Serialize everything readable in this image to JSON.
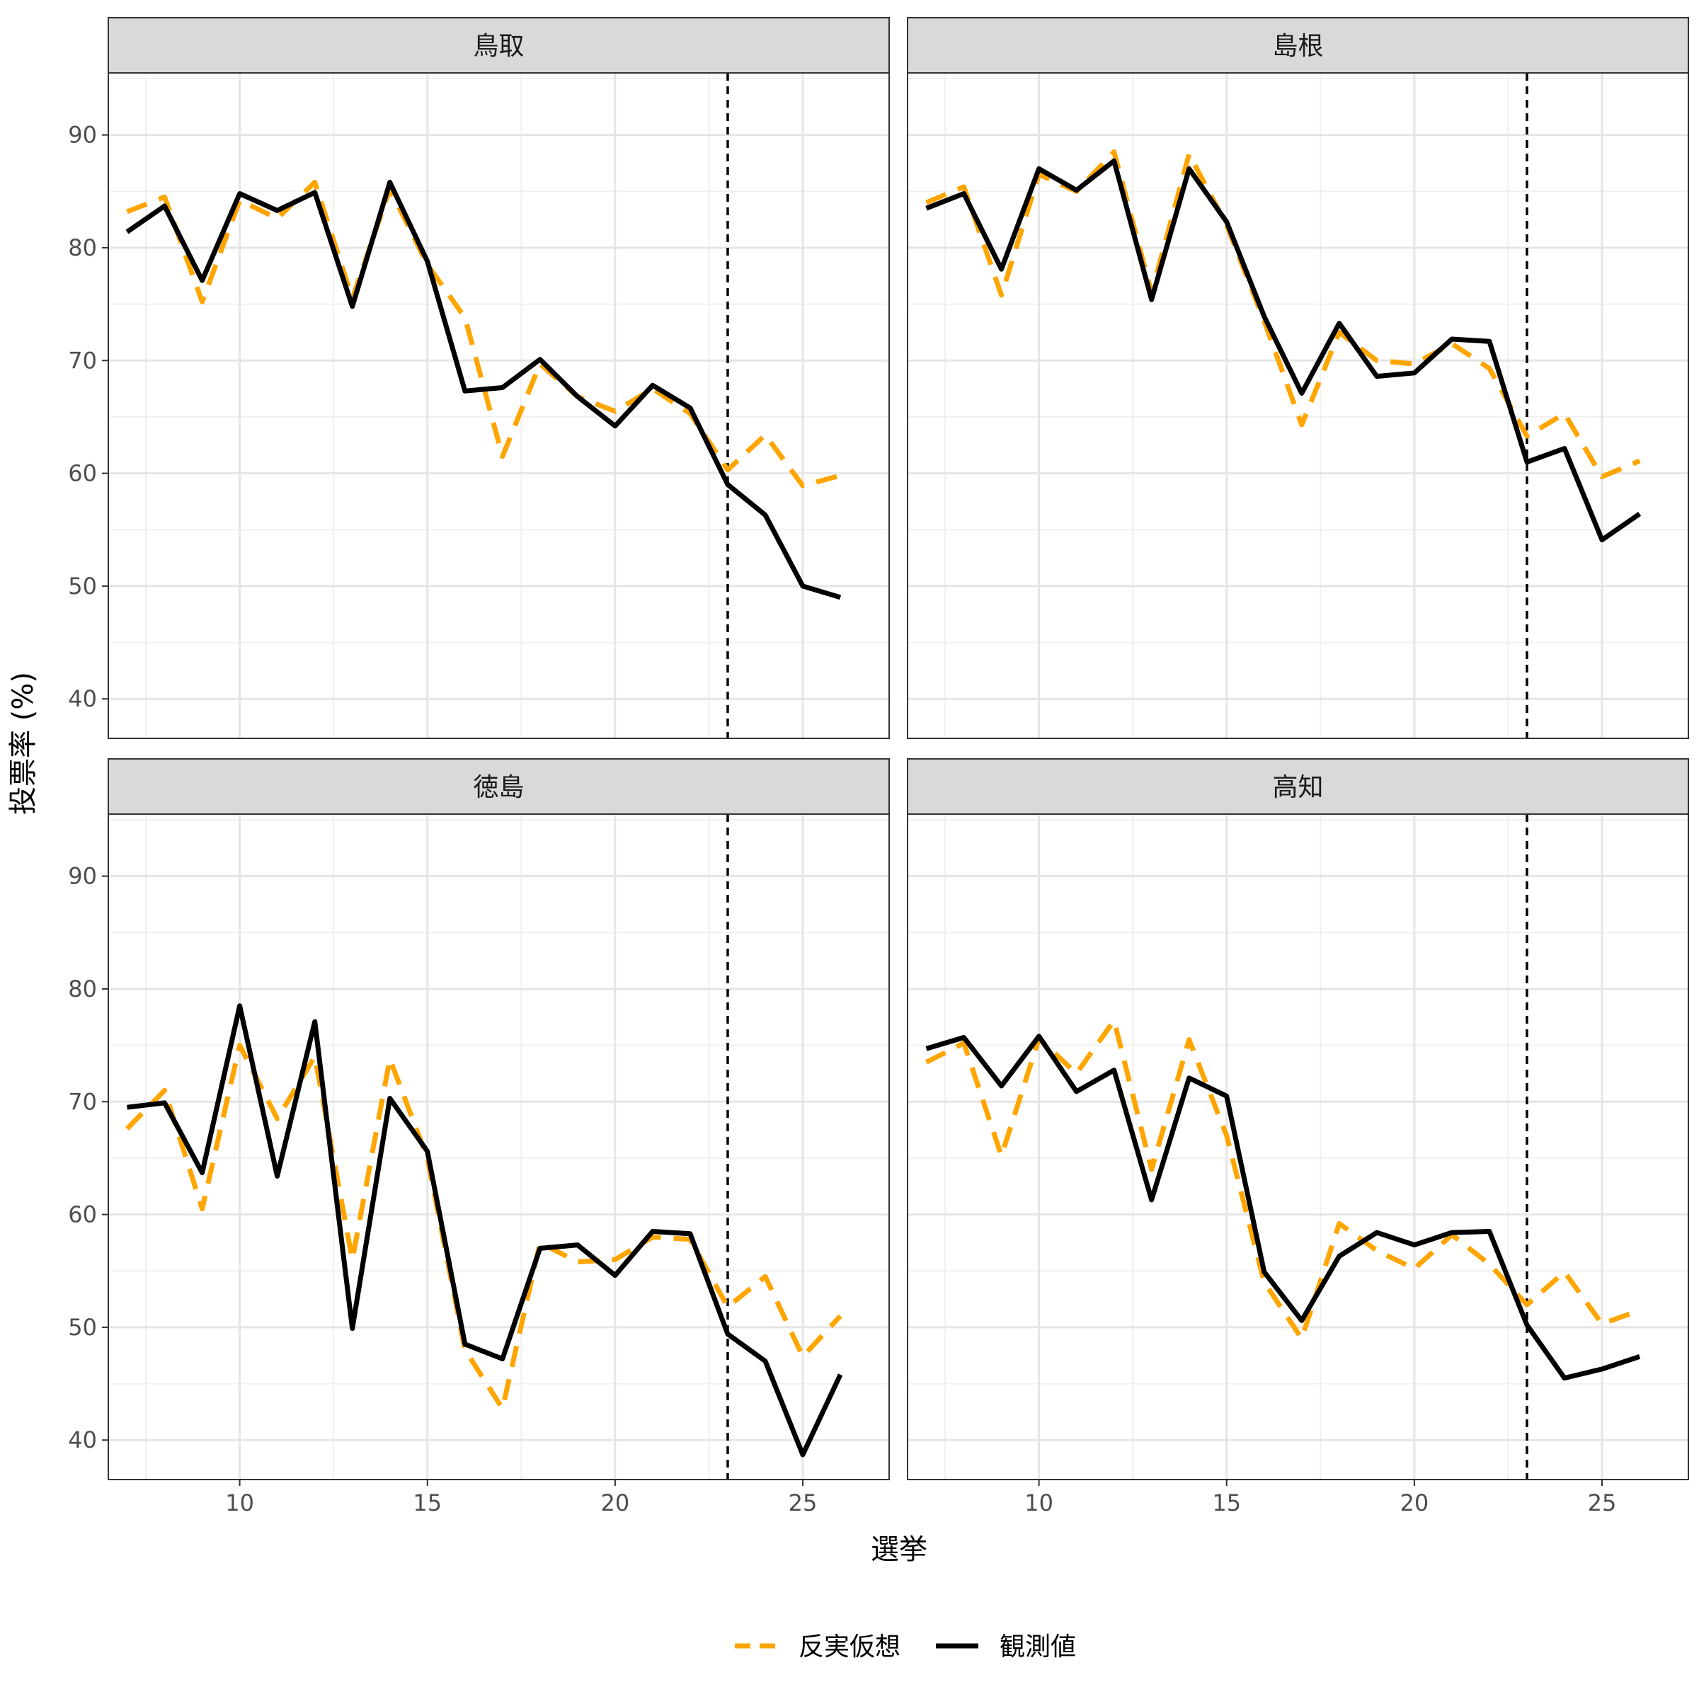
{
  "chart_data": {
    "type": "line",
    "facet_layout": "2x2",
    "xlabel": "選挙",
    "ylabel": "投票率 (%)",
    "xlim": [
      6.5,
      27.3
    ],
    "ylim": [
      36.5,
      95.5
    ],
    "x_ticks": [
      10,
      15,
      20,
      25
    ],
    "y_ticks": [
      40,
      50,
      60,
      70,
      80,
      90
    ],
    "grid": true,
    "vline_x": 23,
    "legend_position": "bottom",
    "legend": [
      {
        "key": "counterfactual",
        "label": "反実仮想",
        "color": "#FFA500",
        "dash": true
      },
      {
        "key": "observed",
        "label": "観測値",
        "color": "#000000",
        "dash": false
      }
    ],
    "x": [
      7,
      8,
      9,
      10,
      11,
      12,
      13,
      14,
      15,
      16,
      17,
      18,
      19,
      20,
      21,
      22,
      23,
      24,
      25,
      26
    ],
    "panels": [
      {
        "title": "鳥取",
        "series": [
          {
            "key": "counterfactual",
            "values": [
              83.2,
              84.5,
              75.2,
              84.2,
              82.6,
              85.8,
              75.5,
              85.2,
              78.5,
              73.8,
              61.5,
              69.7,
              66.8,
              65.5,
              67.5,
              65.3,
              60.3,
              63.4,
              58.9,
              59.8
            ]
          },
          {
            "key": "observed",
            "values": [
              81.4,
              83.7,
              77.1,
              84.8,
              83.3,
              84.9,
              74.8,
              85.8,
              78.8,
              67.3,
              67.6,
              70.1,
              66.8,
              64.2,
              67.8,
              65.8,
              59.0,
              56.3,
              50.0,
              49.0
            ]
          }
        ]
      },
      {
        "title": "島根",
        "series": [
          {
            "key": "counterfactual",
            "values": [
              84.0,
              85.4,
              75.8,
              86.5,
              85.0,
              88.5,
              76.0,
              88.3,
              82.0,
              73.5,
              64.3,
              72.5,
              70.0,
              69.7,
              71.5,
              69.3,
              63.3,
              65.3,
              59.7,
              61.1
            ]
          },
          {
            "key": "observed",
            "values": [
              83.5,
              84.8,
              78.1,
              87.0,
              85.1,
              87.7,
              75.4,
              87.0,
              82.3,
              73.9,
              67.1,
              73.3,
              68.6,
              68.9,
              71.9,
              71.7,
              61.0,
              62.2,
              54.1,
              56.4
            ]
          }
        ]
      },
      {
        "title": "徳島",
        "series": [
          {
            "key": "counterfactual",
            "values": [
              67.6,
              71.0,
              60.5,
              75.0,
              68.5,
              74.0,
              56.0,
              73.8,
              65.0,
              48.0,
              42.8,
              57.5,
              55.8,
              56.0,
              58.0,
              57.8,
              51.8,
              54.5,
              47.4,
              51.0
            ]
          },
          {
            "key": "observed",
            "values": [
              69.5,
              69.9,
              63.7,
              78.5,
              63.4,
              77.1,
              49.9,
              70.3,
              65.6,
              48.5,
              47.2,
              57.0,
              57.3,
              54.6,
              58.5,
              58.3,
              49.4,
              47.0,
              38.7,
              45.8
            ]
          }
        ]
      },
      {
        "title": "高知",
        "series": [
          {
            "key": "counterfactual",
            "values": [
              73.5,
              75.2,
              65.2,
              75.6,
              72.5,
              77.2,
              64.0,
              75.5,
              67.0,
              54.0,
              49.0,
              59.2,
              56.8,
              55.2,
              58.2,
              55.6,
              52.0,
              54.9,
              50.3,
              51.5
            ]
          },
          {
            "key": "observed",
            "values": [
              74.7,
              75.7,
              71.4,
              75.8,
              70.9,
              72.8,
              61.3,
              72.1,
              70.5,
              54.9,
              50.6,
              56.3,
              58.4,
              57.3,
              58.4,
              58.5,
              50.2,
              45.5,
              46.3,
              47.4
            ]
          }
        ]
      }
    ]
  }
}
